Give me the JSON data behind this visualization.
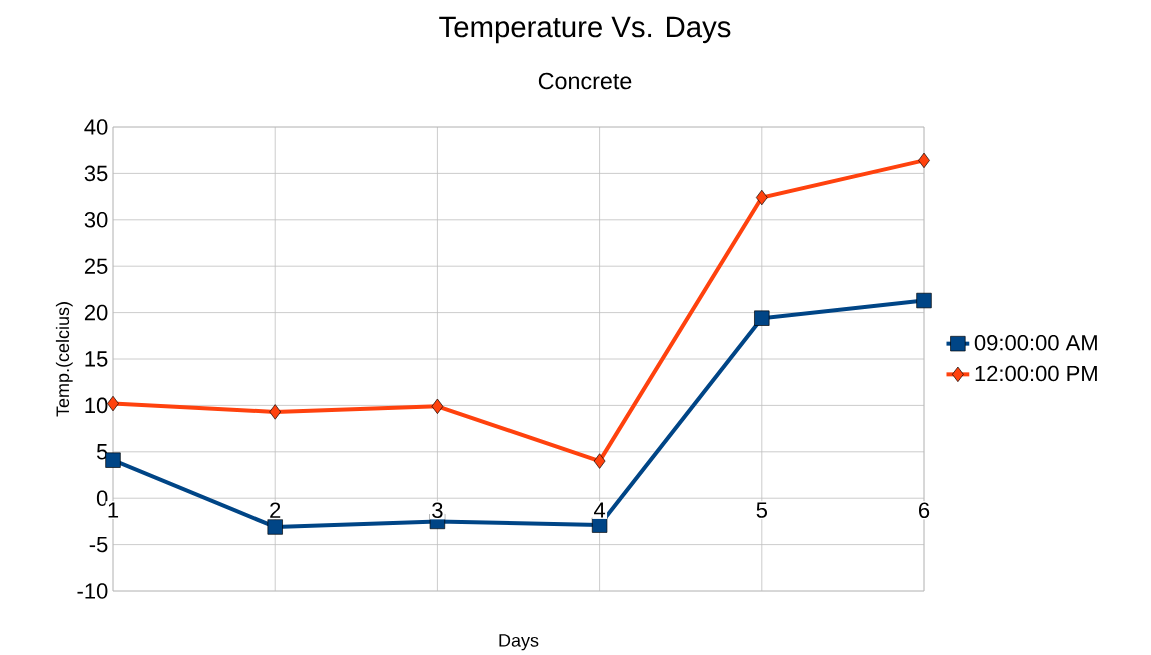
{
  "chart_data": {
    "type": "line",
    "title": "Temperature Vs. Days",
    "subtitle": "Concrete",
    "xlabel": "Days",
    "ylabel": "Temp.(celcius)",
    "categories": [
      "1",
      "2",
      "3",
      "4",
      "5",
      "6"
    ],
    "series": [
      {
        "name": "09:00:00 AM",
        "color": "#004586",
        "marker": "square",
        "values": [
          4.1,
          -3.1,
          -2.5,
          -2.9,
          19.4,
          21.3
        ]
      },
      {
        "name": "12:00:00 PM",
        "color": "#ff420e",
        "marker": "diamond",
        "values": [
          10.2,
          9.3,
          9.9,
          4.0,
          32.4,
          36.4
        ]
      }
    ],
    "ylim": [
      -10,
      40
    ],
    "yticks": [
      -10,
      -5,
      0,
      5,
      10,
      15,
      20,
      25,
      30,
      35,
      40
    ],
    "grid": true,
    "legend": "right"
  }
}
